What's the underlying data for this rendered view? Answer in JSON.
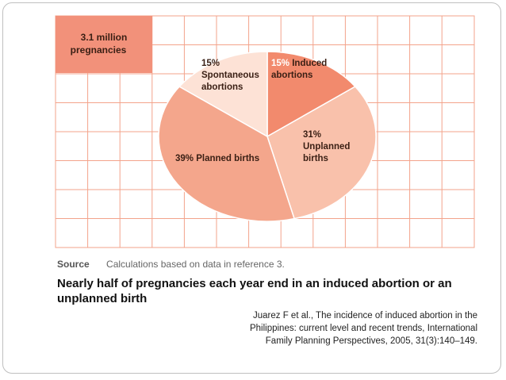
{
  "colors": {
    "grid_line": "#f3a38b",
    "grid_bg": "#ffffff",
    "total_box": "#f2917a",
    "induced": "#f28a6d",
    "unplanned": "#f9c1ab",
    "planned": "#f4a68c",
    "spontaneous": "#fde2d6",
    "pie_edge": "#ffffff",
    "label_dark": "#3a1f14",
    "pct_highlight": "#ffffff"
  },
  "total_box": {
    "lines": [
      "3.1 million",
      "pregnancies"
    ]
  },
  "chart_data": {
    "type": "pie",
    "title": "",
    "total_label": "3.1 million pregnancies",
    "unit": "%",
    "start_angle_deg": 0,
    "direction": "clockwise",
    "slices": [
      {
        "name": "Induced abortions",
        "value": 15,
        "pct_text": "15%",
        "text_lines": [
          " Induced",
          "abortions"
        ],
        "color_key": "induced"
      },
      {
        "name": "Unplanned births",
        "value": 31,
        "pct_text": "31%",
        "text_lines": [
          "Unplanned",
          "births"
        ],
        "color_key": "unplanned"
      },
      {
        "name": "Planned births",
        "value": 39,
        "pct_text": "39%",
        "text_lines": [
          " Planned births"
        ],
        "color_key": "planned"
      },
      {
        "name": "Spontaneous abortions",
        "value": 15,
        "pct_text": "15%",
        "text_lines": [
          "Spontaneous",
          "abortions"
        ],
        "color_key": "spontaneous"
      }
    ]
  },
  "source": {
    "label": "Source",
    "text": "Calculations based on data in reference 3."
  },
  "headline": "Nearly half of pregnancies each year end in an induced abortion or an unplanned birth",
  "citation": {
    "lines": [
      "Juarez F et al., The incidence of induced abortion in the",
      "Philippines: current level and recent trends, International",
      "Family Planning Perspectives, 2005, 31(3):140–149."
    ]
  }
}
